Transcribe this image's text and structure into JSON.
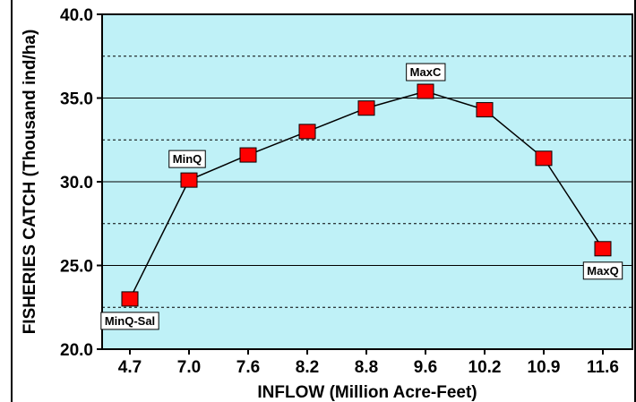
{
  "chart_data": {
    "type": "line",
    "title": "",
    "xlabel": "INFLOW (Million Acre-Feet)",
    "ylabel": "FISHERIES CATCH (Thousand ind/ha)",
    "categories": [
      "4.7",
      "7.0",
      "7.6",
      "8.2",
      "8.8",
      "9.6",
      "10.2",
      "10.9",
      "11.6"
    ],
    "series": [
      {
        "values": [
          23.0,
          30.1,
          31.6,
          33.0,
          34.4,
          35.4,
          34.3,
          31.4,
          26.0
        ]
      }
    ],
    "ylim": [
      20,
      40
    ],
    "yticks": [
      "20.0",
      "25.0",
      "30.0",
      "35.0",
      "40.0"
    ],
    "grid": {
      "major_solid": [
        25,
        30,
        35
      ],
      "minor_dashed": [
        22.5,
        27.5,
        32.5,
        37.5
      ]
    },
    "annotations": [
      {
        "text": "MinQ-Sal",
        "category": "4.7",
        "position": "below"
      },
      {
        "text": "MinQ",
        "category": "7.0",
        "position": "above-left"
      },
      {
        "text": "MaxC",
        "category": "9.6",
        "position": "above"
      },
      {
        "text": "MaxQ",
        "category": "11.6",
        "position": "below"
      }
    ],
    "colors": {
      "plot_background": "#bff1f7",
      "marker_fill": "#ff0000",
      "line": "#000000",
      "annotation_box": "#ffffff"
    }
  }
}
